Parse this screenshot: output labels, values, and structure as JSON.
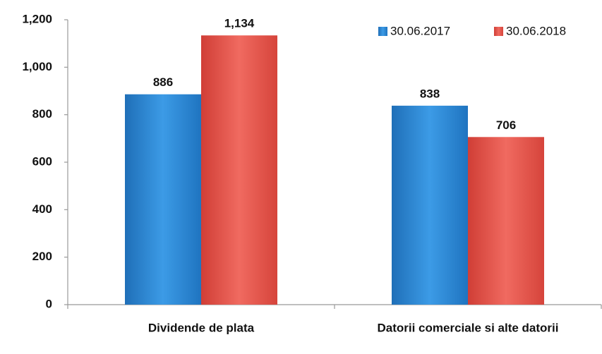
{
  "chart_data": {
    "type": "bar",
    "categories": [
      "Dividende de plata",
      "Datorii comerciale si alte datorii"
    ],
    "series": [
      {
        "name": "30.06.2017",
        "color": "#2f8ddb",
        "values": [
          886,
          838
        ],
        "value_labels": [
          "886",
          "838"
        ]
      },
      {
        "name": "30.06.2018",
        "color": "#e8554c",
        "values": [
          1134,
          706
        ],
        "value_labels": [
          "1,134",
          "706"
        ]
      }
    ],
    "ylim": [
      0,
      1200
    ],
    "yticks": [
      0,
      200,
      400,
      600,
      800,
      {
        "value": 1000,
        "label": "1,000"
      },
      {
        "value": 1200,
        "label": "1,200"
      }
    ],
    "grid": false,
    "legend": "top-right"
  }
}
